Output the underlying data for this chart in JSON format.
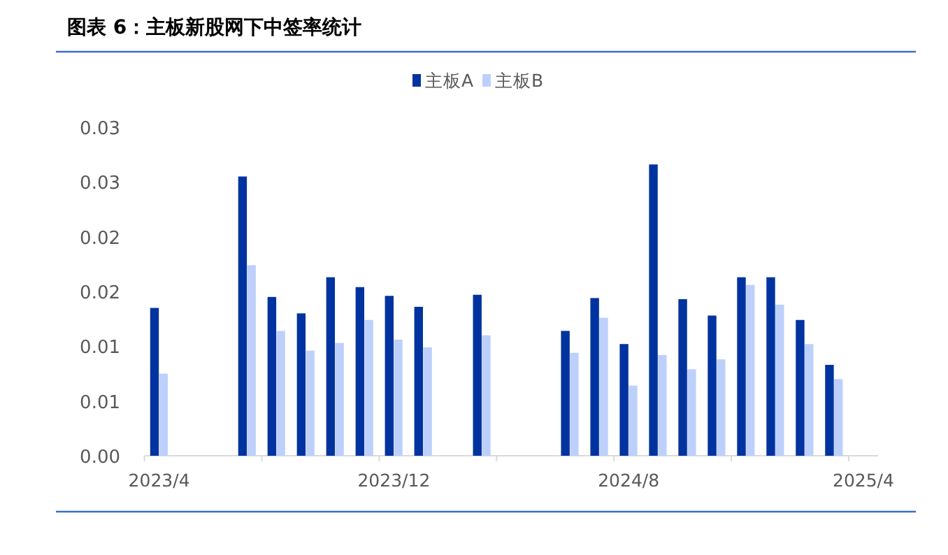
{
  "chart_data": {
    "type": "bar",
    "title": "图表 6：主板新股网下中签率统计",
    "categories": [
      "2023/4",
      null,
      null,
      null,
      null,
      null,
      null,
      null,
      "2023/12",
      null,
      null,
      null,
      null,
      null,
      null,
      null,
      "2024/8",
      null,
      null,
      null,
      null,
      null,
      null,
      null,
      "2025/4"
    ],
    "series": [
      {
        "name": "主板A",
        "color": "#0033a0",
        "values": [
          0.0135,
          null,
          null,
          0.0255,
          0.0145,
          0.013,
          0.0163,
          0.0154,
          0.0146,
          0.0136,
          null,
          0.0147,
          null,
          null,
          0.0114,
          0.0144,
          0.0102,
          0.0266,
          0.0143,
          0.0128,
          0.0163,
          0.0163,
          0.0124,
          0.0083,
          null
        ]
      },
      {
        "name": "主板B",
        "color": "#bdd0fb",
        "values": [
          0.0075,
          null,
          null,
          0.0174,
          0.0114,
          0.0096,
          0.0103,
          0.0124,
          0.0106,
          0.0099,
          null,
          0.011,
          null,
          null,
          0.0094,
          0.0126,
          0.0064,
          0.0092,
          0.0079,
          0.0088,
          0.0156,
          0.0138,
          0.0102,
          0.007,
          null
        ]
      }
    ],
    "ylim": [
      0,
      0.03
    ],
    "yticks": [
      {
        "value": 0,
        "label": "0.00"
      },
      {
        "value": 0.005,
        "label": "0.01"
      },
      {
        "value": 0.01,
        "label": "0.01"
      },
      {
        "value": 0.015,
        "label": "0.02"
      },
      {
        "value": 0.02,
        "label": "0.02"
      },
      {
        "value": 0.025,
        "label": "0.03"
      },
      {
        "value": 0.03,
        "label": "0.03"
      }
    ],
    "grid": false,
    "legend": "top"
  }
}
